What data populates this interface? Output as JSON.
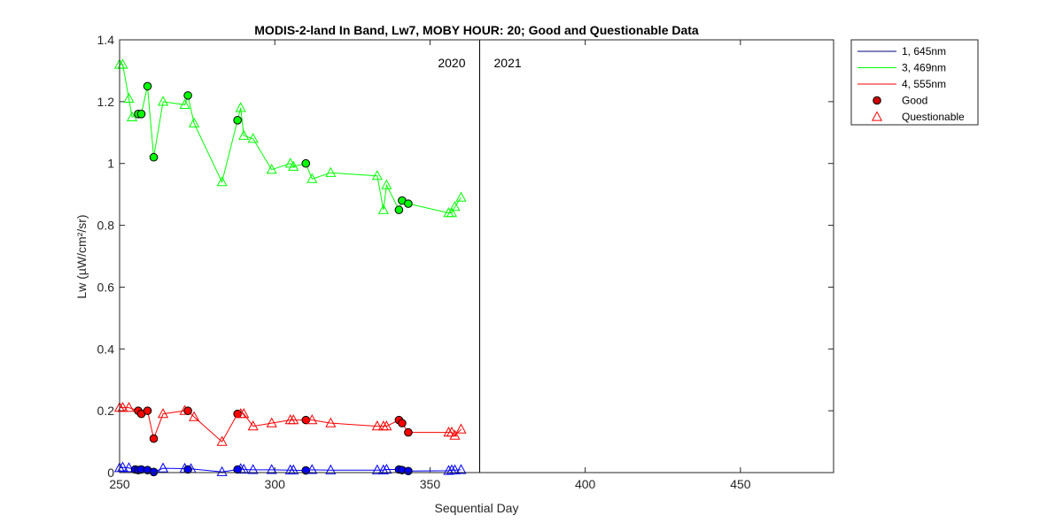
{
  "chart_data": {
    "type": "line",
    "title": "MODIS-2-land In Band,  Lw7, MOBY HOUR: 20;  Good and Questionable Data",
    "xlabel": "Sequential Day",
    "ylabel": "Lw (µW/cm²/sr)",
    "xlim": [
      250,
      480
    ],
    "ylim": [
      0,
      1.4
    ],
    "x_ticks": [
      250,
      300,
      350,
      400,
      450
    ],
    "y_ticks": [
      0,
      0.2,
      0.4,
      0.6,
      0.8,
      1,
      1.2,
      1.4
    ],
    "x_tick_labels": [
      "250",
      "300",
      "350",
      "400",
      "450"
    ],
    "y_tick_labels": [
      "0",
      "0.2",
      "0.4",
      "0.6",
      "0.8",
      "1",
      "1.2",
      "1.4"
    ],
    "grid": false,
    "legend_position": "outside-top-right",
    "year_divider": {
      "x": 366,
      "left_label": "2020",
      "right_label": "2021"
    },
    "series": [
      {
        "name": "1, 645nm",
        "color": "#0000ff",
        "x": [
          250,
          251,
          253,
          255,
          256,
          257,
          259,
          261,
          264,
          271,
          272,
          273,
          283,
          288,
          289,
          290,
          293,
          299,
          305,
          306,
          310,
          312,
          318,
          333,
          335,
          336,
          340,
          341,
          343,
          356,
          357,
          358,
          360
        ],
        "y": [
          0.015,
          0.017,
          0.015,
          0.01,
          0.008,
          0.01,
          0.008,
          0.002,
          0.014,
          0.013,
          0.01,
          0.012,
          0.002,
          0.01,
          0.012,
          0.01,
          0.009,
          0.009,
          0.008,
          0.008,
          0.007,
          0.009,
          0.008,
          0.008,
          0.008,
          0.01,
          0.01,
          0.008,
          0.005,
          0.006,
          0.008,
          0.008,
          0.009
        ],
        "quality": [
          "Q",
          "Q",
          "Q",
          "G",
          "G",
          "G",
          "G",
          "G",
          "Q",
          "Q",
          "G",
          "Q",
          "Q",
          "G",
          "Q",
          "Q",
          "Q",
          "Q",
          "Q",
          "Q",
          "G",
          "Q",
          "Q",
          "Q",
          "Q",
          "Q",
          "G",
          "G",
          "G",
          "Q",
          "Q",
          "Q",
          "Q"
        ]
      },
      {
        "name": "3, 469nm",
        "color": "#00ff00",
        "x": [
          250,
          251,
          253,
          254,
          256,
          257,
          259,
          261,
          264,
          271,
          272,
          274,
          283,
          288,
          289,
          290,
          293,
          299,
          305,
          306,
          310,
          312,
          318,
          333,
          335,
          336,
          340,
          341,
          343,
          356,
          357,
          358,
          360
        ],
        "y": [
          1.32,
          1.32,
          1.21,
          1.15,
          1.16,
          1.16,
          1.25,
          1.02,
          1.2,
          1.19,
          1.22,
          1.13,
          0.94,
          1.14,
          1.18,
          1.09,
          1.08,
          0.98,
          1.0,
          0.99,
          1.0,
          0.95,
          0.97,
          0.96,
          0.85,
          0.93,
          0.85,
          0.88,
          0.87,
          0.84,
          0.84,
          0.86,
          0.89
        ],
        "quality": [
          "Q",
          "Q",
          "Q",
          "Q",
          "G",
          "G",
          "G",
          "G",
          "Q",
          "Q",
          "G",
          "Q",
          "Q",
          "G",
          "Q",
          "Q",
          "Q",
          "Q",
          "Q",
          "Q",
          "G",
          "Q",
          "Q",
          "Q",
          "Q",
          "Q",
          "G",
          "G",
          "G",
          "Q",
          "Q",
          "Q",
          "Q"
        ]
      },
      {
        "name": "4, 555nm",
        "color": "#ff0000",
        "x": [
          250,
          251,
          253,
          256,
          257,
          259,
          261,
          264,
          271,
          272,
          274,
          283,
          288,
          289,
          290,
          293,
          299,
          305,
          306,
          310,
          312,
          318,
          333,
          335,
          336,
          340,
          341,
          343,
          356,
          357,
          358,
          360
        ],
        "y": [
          0.21,
          0.21,
          0.21,
          0.2,
          0.19,
          0.2,
          0.11,
          0.19,
          0.2,
          0.2,
          0.18,
          0.1,
          0.19,
          0.19,
          0.19,
          0.15,
          0.16,
          0.17,
          0.17,
          0.17,
          0.17,
          0.16,
          0.15,
          0.15,
          0.15,
          0.17,
          0.16,
          0.13,
          0.13,
          0.13,
          0.12,
          0.14
        ],
        "quality": [
          "Q",
          "Q",
          "Q",
          "G",
          "G",
          "G",
          "G",
          "Q",
          "Q",
          "G",
          "Q",
          "Q",
          "G",
          "Q",
          "Q",
          "Q",
          "Q",
          "Q",
          "Q",
          "G",
          "Q",
          "Q",
          "Q",
          "Q",
          "Q",
          "G",
          "G",
          "G",
          "Q",
          "Q",
          "Q",
          "Q"
        ]
      }
    ],
    "legend": [
      {
        "label": "1, 645nm",
        "kind": "line",
        "color": "#000080"
      },
      {
        "label": "3, 469nm",
        "kind": "line",
        "color": "#00ff00"
      },
      {
        "label": "4, 555nm",
        "kind": "line",
        "color": "#ff0000"
      },
      {
        "label": "Good",
        "kind": "circle",
        "color": "#cc0000"
      },
      {
        "label": "Questionable",
        "kind": "triangle",
        "color": "#ff0000"
      }
    ]
  }
}
